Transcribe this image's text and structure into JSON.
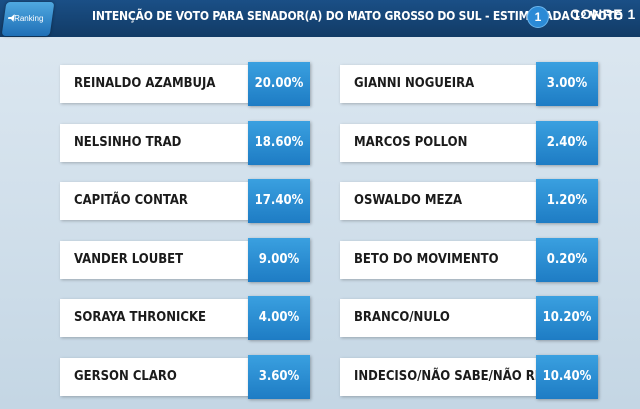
{
  "header": {
    "badge_label": "Ranking",
    "title": "INTENÇÃO DE VOTO PARA SENADOR(A) DO MATO GROSSO DO SUL - ESTIMULADA 1º VOTO",
    "page_number": "1",
    "logo_text": "CONRE 1"
  },
  "chart_data": {
    "type": "table",
    "title": "INTENÇÃO DE VOTO PARA SENADOR(A) DO MATO GROSSO DO SUL - ESTIMULADA 1º VOTO",
    "accent_color": "#2a8fd6",
    "rows": [
      {
        "name": "REINALDO AZAMBUJA",
        "value": 20.0,
        "label": "20.00%"
      },
      {
        "name": "NELSINHO TRAD",
        "value": 18.6,
        "label": "18.60%"
      },
      {
        "name": "CAPITÃO CONTAR",
        "value": 17.4,
        "label": "17.40%"
      },
      {
        "name": "VANDER LOUBET",
        "value": 9.0,
        "label": "9.00%"
      },
      {
        "name": "SORAYA THRONICKE",
        "value": 4.0,
        "label": "4.00%"
      },
      {
        "name": "GERSON CLARO",
        "value": 3.6,
        "label": "3.60%"
      },
      {
        "name": "GIANNI NOGUEIRA",
        "value": 3.0,
        "label": "3.00%"
      },
      {
        "name": "MARCOS POLLON",
        "value": 2.4,
        "label": "2.40%"
      },
      {
        "name": "OSWALDO MEZA",
        "value": 1.2,
        "label": "1.20%"
      },
      {
        "name": "BETO DO MOVIMENTO",
        "value": 0.2,
        "label": "0.20%"
      },
      {
        "name": "BRANCO/NULO",
        "value": 10.2,
        "label": "10.20%"
      },
      {
        "name": "INDECISO/NÃO SABE/NÃO RESP.",
        "value": 10.4,
        "label": "10.40%"
      }
    ]
  }
}
